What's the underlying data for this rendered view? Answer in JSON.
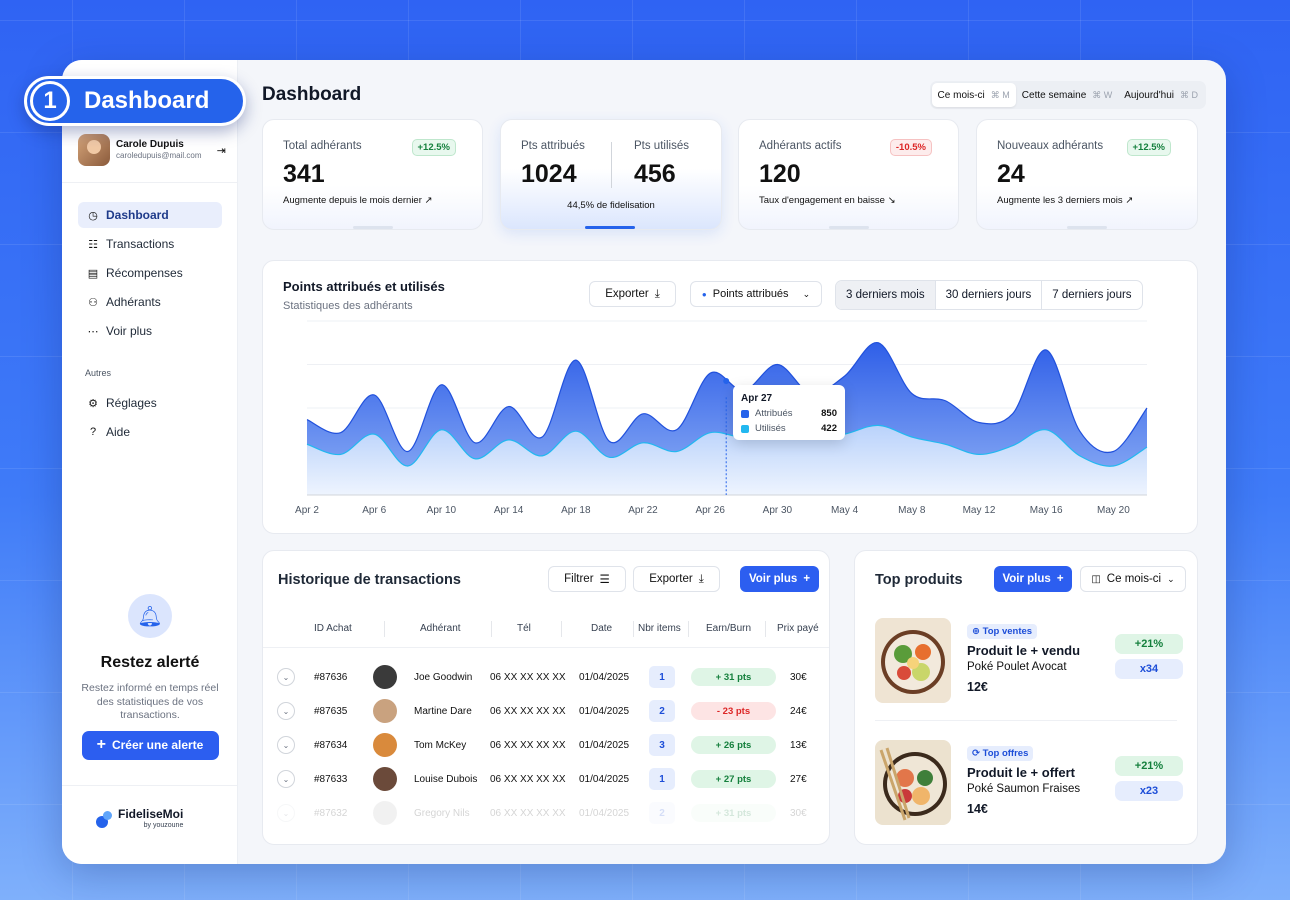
{
  "badge": {
    "number": "1",
    "label": "Dashboard"
  },
  "user": {
    "name": "Carole Dupuis",
    "email": "caroledupuis@mail.com"
  },
  "sidebar": {
    "items": [
      {
        "label": "Dashboard",
        "icon": "dashboard-icon"
      },
      {
        "label": "Transactions",
        "icon": "list-icon"
      },
      {
        "label": "Récompenses",
        "icon": "gift-icon"
      },
      {
        "label": "Adhérants",
        "icon": "users-icon"
      },
      {
        "label": "Voir plus",
        "icon": "more-icon"
      }
    ],
    "section_label": "Autres",
    "others": [
      {
        "label": "Réglages",
        "icon": "gear-icon"
      },
      {
        "label": "Aide",
        "icon": "help-icon"
      }
    ],
    "alert": {
      "title": "Restez alerté",
      "text": "Restez informé en temps réel des statistiques de vos transactions.",
      "button": "Créer une alerte"
    },
    "brand": {
      "name": "FideliseMoi",
      "sub": "by youzoune"
    }
  },
  "header": {
    "title": "Dashboard",
    "periods": [
      {
        "label": "Ce mois-ci",
        "key": "⌘ M"
      },
      {
        "label": "Cette semaine",
        "key": "⌘ W"
      },
      {
        "label": "Aujourd'hui",
        "key": "⌘ D"
      }
    ]
  },
  "kpis": [
    {
      "label": "Total adhérants",
      "value": "341",
      "chip": "+12.5%",
      "desc": "Augmente depuis le mois dernier ↗"
    },
    {
      "label": "Adhérants actifs",
      "value": "120",
      "chip": "-10.5%",
      "desc": "Taux d'engagement en baisse ↘"
    },
    {
      "label": "Nouveaux adhérants",
      "value": "24",
      "chip": "+12.5%",
      "desc": "Augmente les 3 derniers mois ↗"
    }
  ],
  "kpi_points": {
    "label_a": "Pts attribués",
    "value_a": "1024",
    "label_b": "Pts utilisés",
    "value_b": "456",
    "desc": "44,5% de fidelisation"
  },
  "chart": {
    "title": "Points attribués et utilisés",
    "subtitle": "Statistiques des adhérants",
    "export": "Exporter",
    "series_select": "Points attribués",
    "ranges": [
      "3 derniers mois",
      "30 derniers jours",
      "7 derniers jours"
    ],
    "tooltip": {
      "date": "Apr 27",
      "a_label": "Attribués",
      "a_val": "850",
      "b_label": "Utilisés",
      "b_val": "422"
    }
  },
  "chart_data": {
    "type": "area",
    "title": "Points attribués et utilisés",
    "x": [
      "Apr 2",
      "Apr 4",
      "Apr 6",
      "Apr 8",
      "Apr 10",
      "Apr 12",
      "Apr 14",
      "Apr 16",
      "Apr 18",
      "Apr 20",
      "Apr 22",
      "Apr 24",
      "Apr 26",
      "Apr 28",
      "Apr 30",
      "May 2",
      "May 4",
      "May 6",
      "May 8",
      "May 10",
      "May 12",
      "May 14",
      "May 16",
      "May 18",
      "May 20",
      "May 22"
    ],
    "tick_labels": [
      "Apr 2",
      "Apr 6",
      "Apr 10",
      "Apr 14",
      "Apr 18",
      "Apr 22",
      "Apr 26",
      "Apr 30",
      "May 4",
      "May 8",
      "May 12",
      "May 16",
      "May 20"
    ],
    "series": [
      {
        "name": "Attribués",
        "values": [
          520,
          430,
          690,
          300,
          760,
          360,
          610,
          400,
          930,
          370,
          560,
          450,
          840,
          720,
          900,
          700,
          820,
          1050,
          700,
          650,
          500,
          560,
          1000,
          440,
          300,
          600
        ]
      },
      {
        "name": "Utilisés",
        "values": [
          350,
          280,
          420,
          200,
          450,
          250,
          380,
          270,
          440,
          260,
          360,
          300,
          430,
          400,
          460,
          390,
          420,
          480,
          400,
          350,
          280,
          340,
          450,
          270,
          200,
          330
        ]
      }
    ],
    "ylim": [
      0,
      1200
    ]
  },
  "transactions": {
    "title": "Historique de transactions",
    "filter": "Filtrer",
    "export": "Exporter",
    "more": "Voir plus",
    "columns": [
      "ID Achat",
      "Adhérant",
      "Tél",
      "Date",
      "Nbr items",
      "Earn/Burn",
      "Prix payé"
    ],
    "rows": [
      {
        "id": "#87636",
        "name": "Joe Goodwin",
        "tel": "06 XX XX XX XX",
        "date": "01/04/2025",
        "items": "1",
        "pts": "+ 31 pts",
        "type": "g",
        "price": "30€"
      },
      {
        "id": "#87635",
        "name": "Martine Dare",
        "tel": "06 XX XX XX XX",
        "date": "01/04/2025",
        "items": "2",
        "pts": "- 23 pts",
        "type": "r",
        "price": "24€"
      },
      {
        "id": "#87634",
        "name": "Tom McKey",
        "tel": "06 XX XX XX XX",
        "date": "01/04/2025",
        "items": "3",
        "pts": "+ 26 pts",
        "type": "g",
        "price": "13€"
      },
      {
        "id": "#87633",
        "name": "Louise Dubois",
        "tel": "06 XX XX XX XX",
        "date": "01/04/2025",
        "items": "1",
        "pts": "+ 27 pts",
        "type": "g",
        "price": "27€"
      },
      {
        "id": "#87632",
        "name": "Gregory Nils",
        "tel": "06 XX XX XX XX",
        "date": "01/04/2025",
        "items": "2",
        "pts": "+ 31 pts",
        "type": "g",
        "price": "30€"
      }
    ]
  },
  "top": {
    "title": "Top produits",
    "more": "Voir plus",
    "period": "Ce mois-ci",
    "products": [
      {
        "tag": "Top ventes",
        "title": "Produit le + vendu",
        "name": "Poké Poulet Avocat",
        "price": "12€",
        "pct": "+21%",
        "count": "x34"
      },
      {
        "tag": "Top offres",
        "title": "Produit le + offert",
        "name": "Poké Saumon Fraises",
        "price": "14€",
        "pct": "+21%",
        "count": "x23"
      }
    ]
  },
  "colors": {
    "accent": "#2c5ef0",
    "success": "#15803d",
    "danger": "#dc2626"
  }
}
